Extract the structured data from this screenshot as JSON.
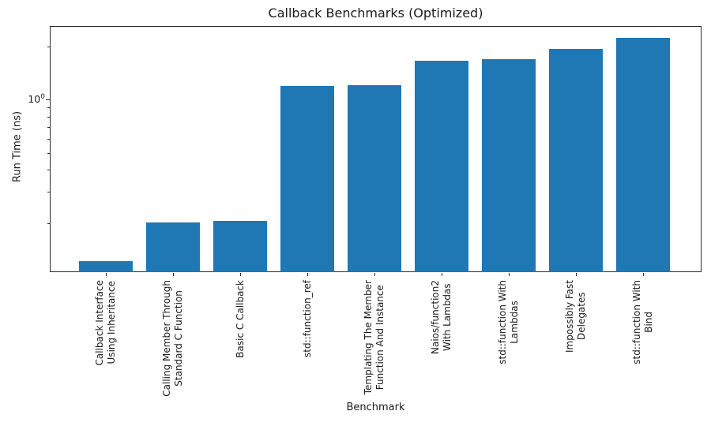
{
  "chart_data": {
    "type": "bar",
    "title": "Callback Benchmarks (Optimized)",
    "xlabel": "Benchmark",
    "ylabel": "Run Time (ns)",
    "yscale": "log",
    "ylim": [
      0.106,
      2.62
    ],
    "bar_color": "#1f77b4",
    "grid": false,
    "legend": "none",
    "categories": [
      "Callback Interface\nUsing Inheritance",
      "Calling Member Through\nStandard C Function",
      "Basic C Callback",
      "std::function_ref",
      "Templating The Member\nFunction And Instance",
      "Naios/function2\nWith Lambdas",
      "std::function With\nLambdas",
      "Impossibly Fast\nDelegates",
      "std::function With\nBind"
    ],
    "values": [
      0.122,
      0.202,
      0.206,
      1.2,
      1.21,
      1.66,
      1.7,
      1.95,
      2.25
    ],
    "y_major_ticks": [
      {
        "value": 1,
        "label": "10⁰",
        "base": "10",
        "exp": "0"
      }
    ],
    "y_minor_ticks": [
      0.2,
      0.3,
      0.4,
      0.5,
      0.6,
      0.7,
      0.8,
      0.9,
      2
    ]
  }
}
